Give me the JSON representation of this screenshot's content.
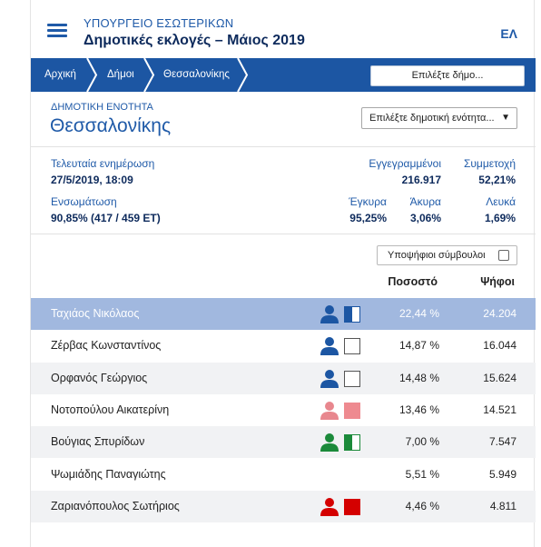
{
  "header": {
    "ministry": "ΥΠΟΥΡΓΕΙΟ ΕΣΩΤΕΡΙΚΩΝ",
    "title": "Δημοτικές εκλογές – Μάιος 2019",
    "lang": "ΕΛ"
  },
  "breadcrumb": {
    "items": [
      "Αρχική",
      "Δήμοι",
      "Θεσσαλονίκης"
    ],
    "municipality_select": "Επιλέξτε δήμο..."
  },
  "unit": {
    "label": "ΔΗΜΟΤΙΚΗ ΕΝΟΤΗΤΑ",
    "name": "Θεσσαλονίκης",
    "select": "Επιλέξτε δημοτική ενότητα...",
    "select_arrow": "▼"
  },
  "stats": {
    "last_update_label": "Τελευταία ενημέρωση",
    "last_update_value": "27/5/2019, 18:09",
    "registered_label": "Εγγεγραμμένοι",
    "registered_value": "216.917",
    "turnout_label": "Συμμετοχή",
    "turnout_value": "52,21%",
    "integration_label": "Ενσωμάτωση",
    "integration_value": "90,85% (417 / 459 ΕΤ)",
    "valid_label": "Έγκυρα",
    "valid_value": "95,25%",
    "invalid_label": "Άκυρα",
    "invalid_value": "3,06%",
    "blank_label": "Λευκά",
    "blank_value": "1,69%"
  },
  "candidates_toggle": "Υποψήφιοι σύμβουλοι",
  "table": {
    "col_percent": "Ποσοστό",
    "col_votes": "Ψήφοι",
    "rows": [
      {
        "name": "Ταχιάος Νικόλαος",
        "pct": "22,44 %",
        "votes": "24.204",
        "person_color": "#1c56a3",
        "party_style": "half",
        "party_color": "#1c56a3",
        "party_border": "#1c56a3"
      },
      {
        "name": "Ζέρβας Κωνσταντίνος",
        "pct": "14,87 %",
        "votes": "16.044",
        "person_color": "#1c56a3",
        "party_style": "empty",
        "party_color": "#ffffff",
        "party_border": "#555555"
      },
      {
        "name": "Ορφανός Γεώργιος",
        "pct": "14,48 %",
        "votes": "15.624",
        "person_color": "#1c56a3",
        "party_style": "empty",
        "party_color": "#ffffff",
        "party_border": "#555555"
      },
      {
        "name": "Νοτοπούλου Αικατερίνη",
        "pct": "13,46 %",
        "votes": "14.521",
        "person_color": "#e8878e",
        "party_style": "full",
        "party_color": "#ee8a90",
        "party_border": "#ee8a90"
      },
      {
        "name": "Βούγιας Σπυρίδων",
        "pct": "7,00 %",
        "votes": "7.547",
        "person_color": "#1b8a3a",
        "party_style": "half",
        "party_color": "#1b8a3a",
        "party_border": "#1b8a3a"
      },
      {
        "name": "Ψωμιάδης Παναγιώτης",
        "pct": "5,51 %",
        "votes": "5.949",
        "person_color": "",
        "party_style": "none",
        "party_color": "",
        "party_border": ""
      },
      {
        "name": "Ζαριανόπουλος Σωτήριος",
        "pct": "4,46 %",
        "votes": "4.811",
        "person_color": "#d40000",
        "party_style": "full",
        "party_color": "#d40000",
        "party_border": "#d40000"
      }
    ]
  }
}
